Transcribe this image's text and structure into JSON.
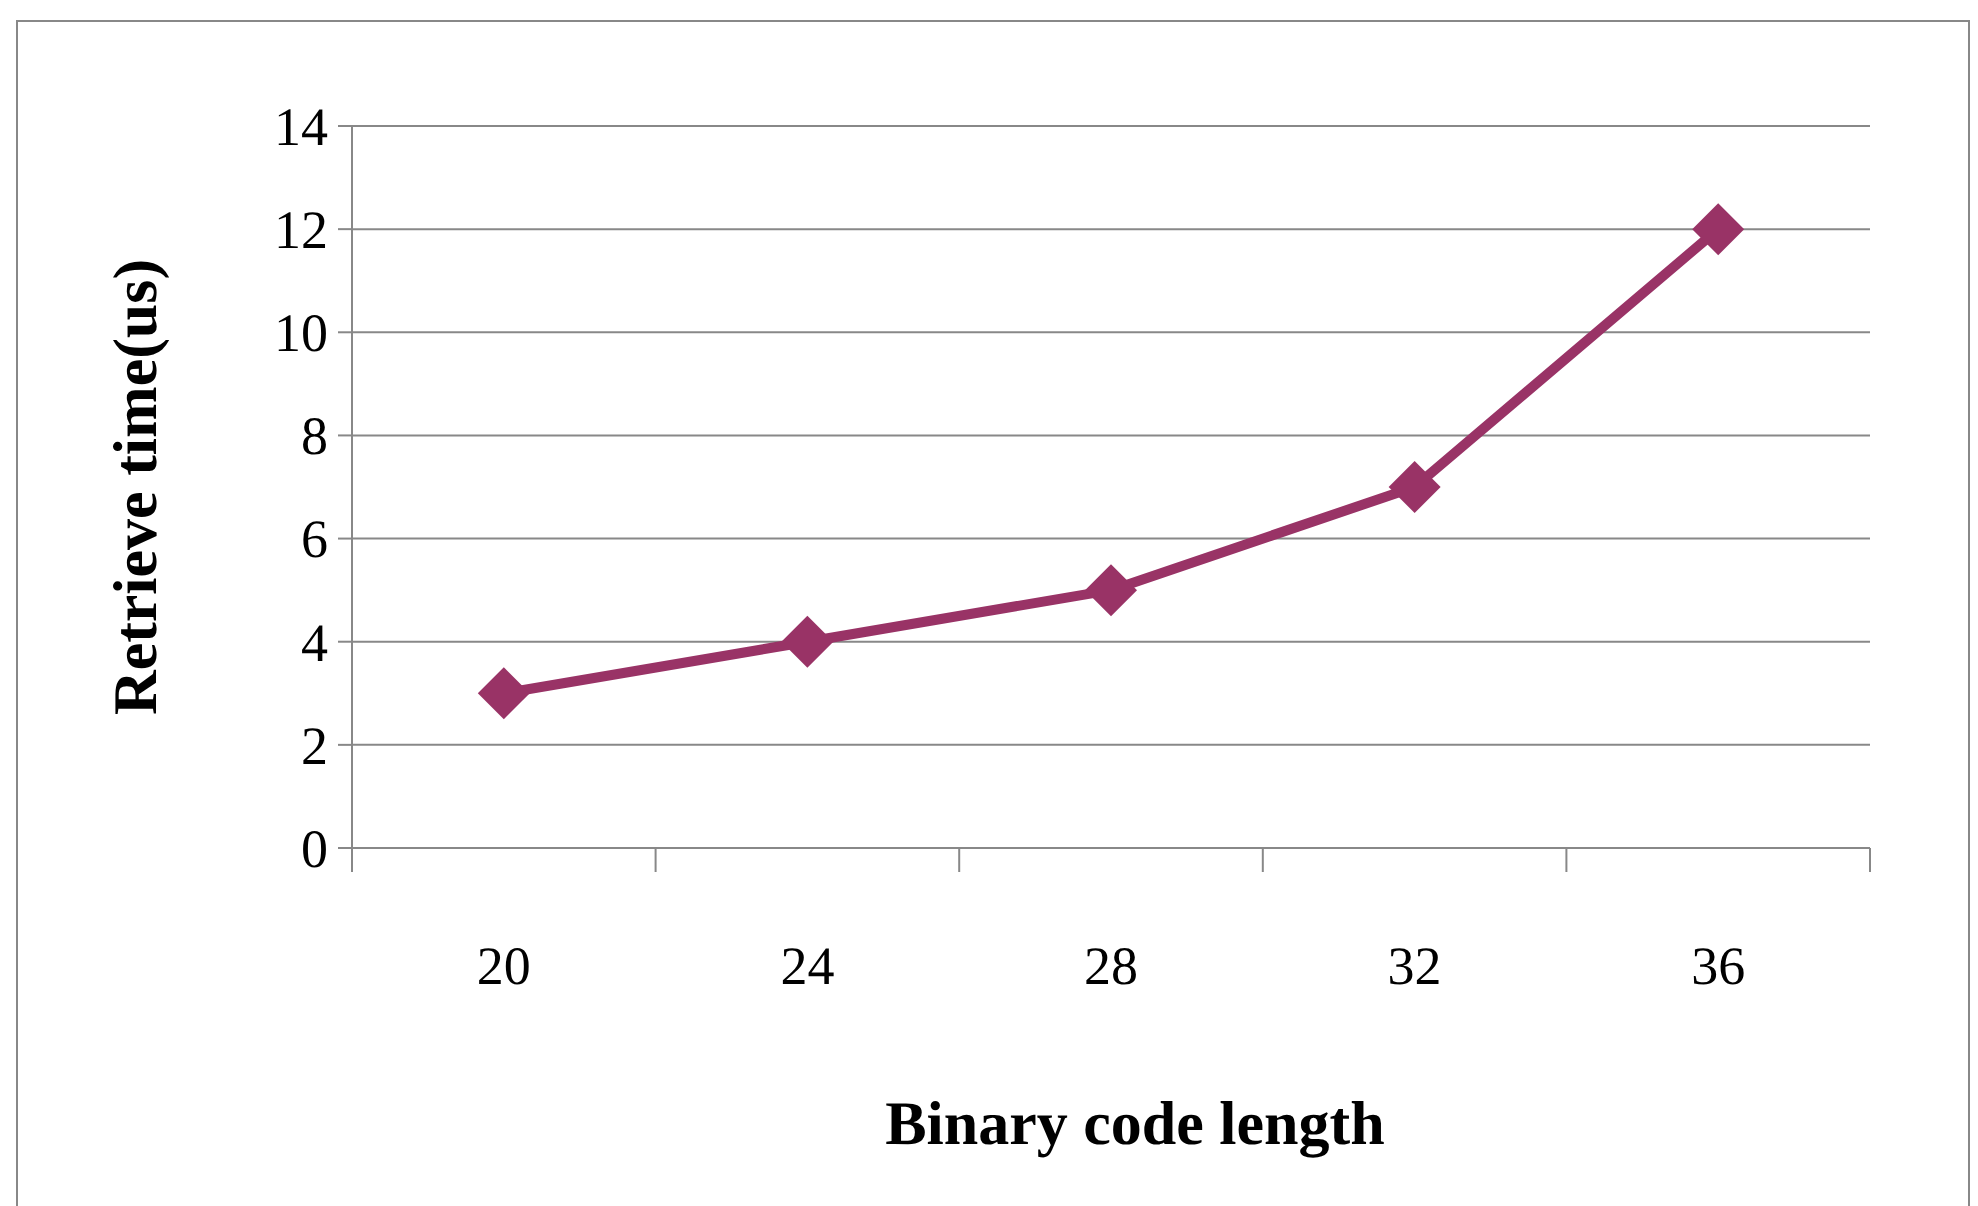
{
  "chart_data": {
    "type": "line",
    "xlabel": "Binary code length",
    "ylabel": "Retrieve time(us)",
    "categories": [
      "20",
      "24",
      "28",
      "32",
      "36"
    ],
    "series": [
      {
        "color": "#993366",
        "values": [
          3,
          4,
          5,
          7,
          12
        ]
      }
    ],
    "ylim": [
      0,
      14
    ],
    "yticks": [
      0,
      2,
      4,
      6,
      8,
      10,
      12,
      14
    ],
    "grid": "y",
    "marker": "diamond"
  }
}
